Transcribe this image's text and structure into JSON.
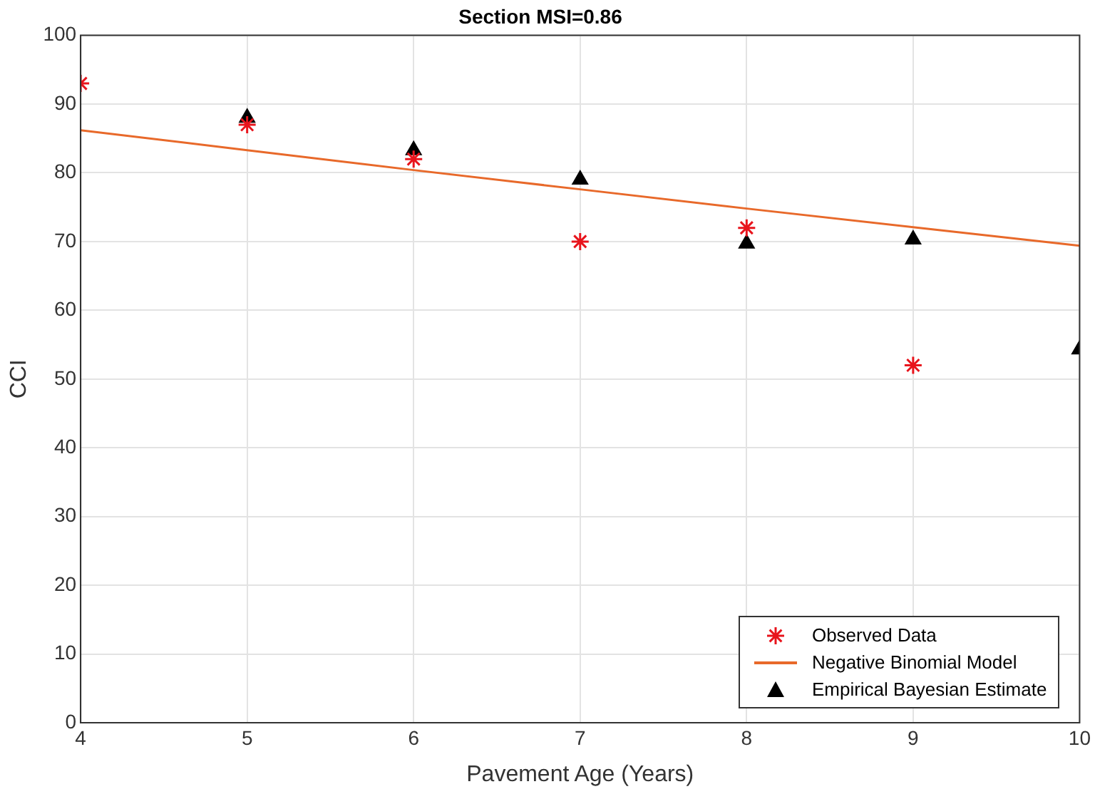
{
  "chart_data": {
    "type": "scatter",
    "title": "Section MSI=0.86",
    "xlabel": "Pavement Age (Years)",
    "ylabel": "CCI",
    "xlim": [
      4,
      10
    ],
    "xticks": [
      4,
      5,
      6,
      7,
      8,
      9,
      10
    ],
    "ylim": [
      0,
      100
    ],
    "yticks": [
      0,
      10,
      20,
      30,
      40,
      50,
      60,
      70,
      80,
      90,
      100
    ],
    "grid": true,
    "legend": "bottom right",
    "series": [
      {
        "name": "Observed Data",
        "type": "scatter",
        "marker": "cross",
        "color": "#e8141c",
        "x": [
          4,
          5,
          6,
          7,
          8,
          9
        ],
        "values": [
          93,
          87,
          82,
          70,
          72,
          52
        ]
      },
      {
        "name": "Negative Binomial Model",
        "type": "line",
        "marker": "none",
        "line_style": "solid",
        "color": "#e8692a",
        "x": [
          4,
          5,
          6,
          7,
          8,
          9,
          10
        ],
        "values": [
          86.2,
          83.3,
          80.4,
          77.6,
          74.8,
          72.1,
          69.4
        ]
      },
      {
        "name": "Empirical Bayesian Estimate",
        "type": "scatter",
        "marker": "triangle",
        "color": "#000000",
        "x": [
          5,
          6,
          7,
          8,
          9,
          10
        ],
        "values": [
          88,
          83.3,
          79,
          69.7,
          70.3,
          54.3
        ]
      }
    ]
  }
}
